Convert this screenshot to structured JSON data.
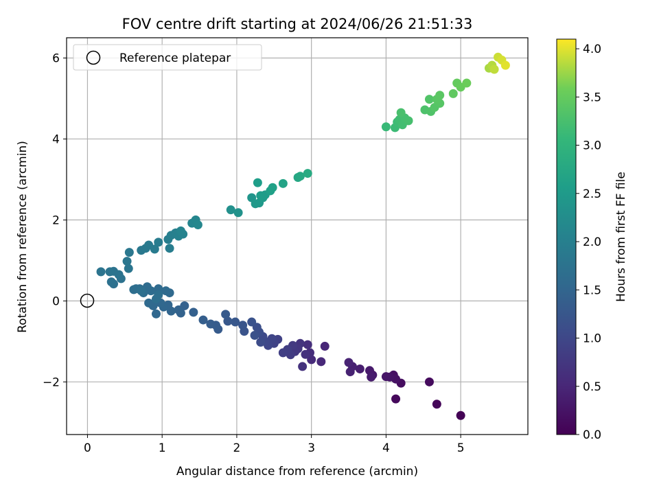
{
  "chart_data": {
    "type": "scatter",
    "title": "FOV centre drift starting at 2024/06/26 21:51:33",
    "xlabel": "Angular distance from reference (arcmin)",
    "ylabel": "Rotation from reference (arcmin)",
    "xlim": [
      -0.28,
      5.9
    ],
    "ylim": [
      -3.3,
      6.5
    ],
    "xticks": [
      0,
      1,
      2,
      3,
      4,
      5
    ],
    "xtick_labels": [
      "0",
      "1",
      "2",
      "3",
      "4",
      "5"
    ],
    "yticks": [
      -2,
      0,
      2,
      4,
      6
    ],
    "ytick_labels": [
      "−2",
      "0",
      "2",
      "4",
      "6"
    ],
    "grid": true,
    "legend": {
      "placement": "top-left",
      "entries": [
        "Reference platepar"
      ]
    },
    "reference_point": {
      "x": 0,
      "y": 0
    },
    "colorbar": {
      "label": "Hours from first FF file",
      "colormap": "viridis",
      "range": [
        0.0,
        4.1
      ],
      "ticks": [
        0.0,
        0.5,
        1.0,
        1.5,
        2.0,
        2.5,
        3.0,
        3.5,
        4.0
      ],
      "tick_labels": [
        "0.0",
        "0.5",
        "1.0",
        "1.5",
        "2.0",
        "2.5",
        "3.0",
        "3.5",
        "4.0"
      ]
    },
    "points": [
      {
        "x": 5.0,
        "y": -2.83,
        "h": 0.02
      },
      {
        "x": 4.68,
        "y": -2.55,
        "h": 0.06
      },
      {
        "x": 4.13,
        "y": -2.42,
        "h": 0.1
      },
      {
        "x": 4.58,
        "y": -2.0,
        "h": 0.13
      },
      {
        "x": 4.2,
        "y": -2.03,
        "h": 0.16
      },
      {
        "x": 4.1,
        "y": -1.83,
        "h": 0.2
      },
      {
        "x": 4.13,
        "y": -1.93,
        "h": 0.22
      },
      {
        "x": 4.05,
        "y": -1.88,
        "h": 0.25
      },
      {
        "x": 4.0,
        "y": -1.87,
        "h": 0.27
      },
      {
        "x": 3.82,
        "y": -1.83,
        "h": 0.3
      },
      {
        "x": 3.78,
        "y": -1.72,
        "h": 0.33
      },
      {
        "x": 3.8,
        "y": -1.88,
        "h": 0.36
      },
      {
        "x": 3.65,
        "y": -1.68,
        "h": 0.38
      },
      {
        "x": 3.55,
        "y": -1.62,
        "h": 0.41
      },
      {
        "x": 3.52,
        "y": -1.75,
        "h": 0.43
      },
      {
        "x": 3.5,
        "y": -1.52,
        "h": 0.46
      },
      {
        "x": 3.18,
        "y": -1.12,
        "h": 0.5
      },
      {
        "x": 3.13,
        "y": -1.5,
        "h": 0.53
      },
      {
        "x": 3.0,
        "y": -1.45,
        "h": 0.56
      },
      {
        "x": 2.98,
        "y": -1.28,
        "h": 0.59
      },
      {
        "x": 2.95,
        "y": -1.08,
        "h": 0.62
      },
      {
        "x": 2.92,
        "y": -1.32,
        "h": 0.65
      },
      {
        "x": 2.88,
        "y": -1.62,
        "h": 0.67
      },
      {
        "x": 2.85,
        "y": -1.05,
        "h": 0.7
      },
      {
        "x": 2.82,
        "y": -1.18,
        "h": 0.73
      },
      {
        "x": 2.78,
        "y": -1.25,
        "h": 0.76
      },
      {
        "x": 2.75,
        "y": -1.1,
        "h": 0.79
      },
      {
        "x": 2.72,
        "y": -1.33,
        "h": 0.82
      },
      {
        "x": 2.68,
        "y": -1.2,
        "h": 0.85
      },
      {
        "x": 2.62,
        "y": -1.28,
        "h": 0.87
      },
      {
        "x": 2.55,
        "y": -0.95,
        "h": 0.9
      },
      {
        "x": 2.5,
        "y": -1.05,
        "h": 0.93
      },
      {
        "x": 2.47,
        "y": -0.93,
        "h": 0.96
      },
      {
        "x": 2.42,
        "y": -1.1,
        "h": 0.98
      },
      {
        "x": 2.38,
        "y": -1.0,
        "h": 1.01
      },
      {
        "x": 2.35,
        "y": -0.88,
        "h": 1.04
      },
      {
        "x": 2.32,
        "y": -1.02,
        "h": 1.07
      },
      {
        "x": 2.3,
        "y": -0.77,
        "h": 1.1
      },
      {
        "x": 2.27,
        "y": -0.65,
        "h": 1.12
      },
      {
        "x": 2.24,
        "y": -0.85,
        "h": 1.15
      },
      {
        "x": 2.2,
        "y": -0.52,
        "h": 1.18
      },
      {
        "x": 2.1,
        "y": -0.75,
        "h": 1.2
      },
      {
        "x": 2.08,
        "y": -0.6,
        "h": 1.23
      },
      {
        "x": 1.98,
        "y": -0.52,
        "h": 1.25
      },
      {
        "x": 1.88,
        "y": -0.5,
        "h": 1.28
      },
      {
        "x": 1.85,
        "y": -0.33,
        "h": 1.3
      },
      {
        "x": 1.75,
        "y": -0.7,
        "h": 1.32
      },
      {
        "x": 1.72,
        "y": -0.6,
        "h": 1.34
      },
      {
        "x": 1.65,
        "y": -0.57,
        "h": 1.36
      },
      {
        "x": 1.55,
        "y": -0.47,
        "h": 1.38
      },
      {
        "x": 1.42,
        "y": -0.28,
        "h": 1.4
      },
      {
        "x": 1.3,
        "y": -0.12,
        "h": 1.42
      },
      {
        "x": 1.25,
        "y": -0.3,
        "h": 1.44
      },
      {
        "x": 1.22,
        "y": -0.22,
        "h": 1.46
      },
      {
        "x": 1.12,
        "y": -0.25,
        "h": 1.48
      },
      {
        "x": 1.08,
        "y": -0.1,
        "h": 1.5
      },
      {
        "x": 1.02,
        "y": -0.15,
        "h": 1.52
      },
      {
        "x": 0.98,
        "y": -0.05,
        "h": 1.53
      },
      {
        "x": 0.92,
        "y": -0.32,
        "h": 1.54
      },
      {
        "x": 0.88,
        "y": -0.12,
        "h": 1.56
      },
      {
        "x": 0.82,
        "y": -0.05,
        "h": 1.57
      },
      {
        "x": 1.1,
        "y": 0.2,
        "h": 1.58
      },
      {
        "x": 1.05,
        "y": 0.25,
        "h": 1.59
      },
      {
        "x": 0.95,
        "y": 0.3,
        "h": 1.6
      },
      {
        "x": 0.85,
        "y": 0.25,
        "h": 1.61
      },
      {
        "x": 0.8,
        "y": 0.35,
        "h": 1.62
      },
      {
        "x": 0.75,
        "y": 0.2,
        "h": 1.63
      },
      {
        "x": 0.7,
        "y": 0.3,
        "h": 1.64
      },
      {
        "x": 0.65,
        "y": 0.3,
        "h": 1.65
      },
      {
        "x": 0.62,
        "y": 0.28,
        "h": 1.66
      },
      {
        "x": 0.95,
        "y": 0.15,
        "h": 1.67
      },
      {
        "x": 0.92,
        "y": 0.05,
        "h": 1.68
      },
      {
        "x": 0.72,
        "y": 0.25,
        "h": 1.69
      },
      {
        "x": 0.35,
        "y": 0.42,
        "h": 1.7
      },
      {
        "x": 0.32,
        "y": 0.47,
        "h": 1.71
      },
      {
        "x": 0.45,
        "y": 0.55,
        "h": 1.73
      },
      {
        "x": 0.42,
        "y": 0.65,
        "h": 1.75
      },
      {
        "x": 0.35,
        "y": 0.73,
        "h": 1.76
      },
      {
        "x": 0.3,
        "y": 0.72,
        "h": 1.77
      },
      {
        "x": 0.18,
        "y": 0.72,
        "h": 1.78
      },
      {
        "x": 0.55,
        "y": 0.8,
        "h": 1.8
      },
      {
        "x": 0.53,
        "y": 0.98,
        "h": 1.82
      },
      {
        "x": 0.56,
        "y": 1.2,
        "h": 1.84
      },
      {
        "x": 0.72,
        "y": 1.25,
        "h": 1.86
      },
      {
        "x": 0.78,
        "y": 1.3,
        "h": 1.88
      },
      {
        "x": 0.82,
        "y": 1.38,
        "h": 1.9
      },
      {
        "x": 0.9,
        "y": 1.28,
        "h": 1.92
      },
      {
        "x": 0.95,
        "y": 1.45,
        "h": 1.94
      },
      {
        "x": 1.1,
        "y": 1.3,
        "h": 1.96
      },
      {
        "x": 1.08,
        "y": 1.52,
        "h": 1.98
      },
      {
        "x": 1.12,
        "y": 1.62,
        "h": 2.0
      },
      {
        "x": 1.18,
        "y": 1.68,
        "h": 2.02
      },
      {
        "x": 1.22,
        "y": 1.6,
        "h": 2.04
      },
      {
        "x": 1.28,
        "y": 1.65,
        "h": 2.06
      },
      {
        "x": 1.25,
        "y": 1.73,
        "h": 2.08
      },
      {
        "x": 1.4,
        "y": 1.92,
        "h": 2.1
      },
      {
        "x": 1.45,
        "y": 2.0,
        "h": 2.12
      },
      {
        "x": 1.48,
        "y": 1.88,
        "h": 2.14
      },
      {
        "x": 1.92,
        "y": 2.25,
        "h": 2.3
      },
      {
        "x": 2.02,
        "y": 2.18,
        "h": 2.35
      },
      {
        "x": 2.2,
        "y": 2.55,
        "h": 2.4
      },
      {
        "x": 2.25,
        "y": 2.4,
        "h": 2.45
      },
      {
        "x": 2.3,
        "y": 2.42,
        "h": 2.48
      },
      {
        "x": 2.35,
        "y": 2.55,
        "h": 2.5
      },
      {
        "x": 2.38,
        "y": 2.62,
        "h": 2.52
      },
      {
        "x": 2.32,
        "y": 2.6,
        "h": 2.54
      },
      {
        "x": 2.28,
        "y": 2.92,
        "h": 2.57
      },
      {
        "x": 2.45,
        "y": 2.72,
        "h": 2.6
      },
      {
        "x": 2.48,
        "y": 2.8,
        "h": 2.62
      },
      {
        "x": 2.62,
        "y": 2.9,
        "h": 2.67
      },
      {
        "x": 2.82,
        "y": 3.05,
        "h": 2.72
      },
      {
        "x": 2.85,
        "y": 3.08,
        "h": 2.76
      },
      {
        "x": 2.95,
        "y": 3.15,
        "h": 2.8
      },
      {
        "x": 4.0,
        "y": 4.3,
        "h": 3.1
      },
      {
        "x": 4.12,
        "y": 4.28,
        "h": 3.14
      },
      {
        "x": 4.15,
        "y": 4.42,
        "h": 3.16
      },
      {
        "x": 4.18,
        "y": 4.48,
        "h": 3.18
      },
      {
        "x": 4.22,
        "y": 4.35,
        "h": 3.2
      },
      {
        "x": 4.25,
        "y": 4.52,
        "h": 3.22
      },
      {
        "x": 4.3,
        "y": 4.45,
        "h": 3.24
      },
      {
        "x": 4.2,
        "y": 4.65,
        "h": 3.26
      },
      {
        "x": 4.52,
        "y": 4.72,
        "h": 3.3
      },
      {
        "x": 4.6,
        "y": 4.68,
        "h": 3.32
      },
      {
        "x": 4.58,
        "y": 4.98,
        "h": 3.34
      },
      {
        "x": 4.65,
        "y": 4.78,
        "h": 3.36
      },
      {
        "x": 4.72,
        "y": 4.88,
        "h": 3.38
      },
      {
        "x": 4.68,
        "y": 4.98,
        "h": 3.4
      },
      {
        "x": 4.72,
        "y": 5.08,
        "h": 3.42
      },
      {
        "x": 4.9,
        "y": 5.12,
        "h": 3.46
      },
      {
        "x": 4.95,
        "y": 5.38,
        "h": 3.5
      },
      {
        "x": 5.0,
        "y": 5.28,
        "h": 3.52
      },
      {
        "x": 5.08,
        "y": 5.38,
        "h": 3.55
      },
      {
        "x": 5.38,
        "y": 5.75,
        "h": 3.8
      },
      {
        "x": 5.42,
        "y": 5.82,
        "h": 3.84
      },
      {
        "x": 5.45,
        "y": 5.72,
        "h": 3.88
      },
      {
        "x": 5.5,
        "y": 6.02,
        "h": 3.92
      },
      {
        "x": 5.55,
        "y": 5.95,
        "h": 3.96
      },
      {
        "x": 5.6,
        "y": 5.82,
        "h": 4.0
      }
    ]
  }
}
